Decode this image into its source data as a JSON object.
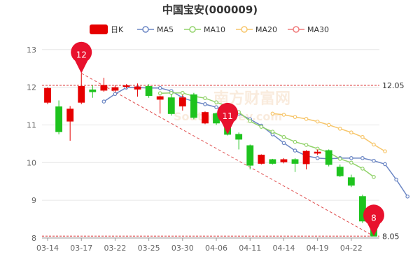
{
  "chart_data": {
    "type": "candlestick",
    "title": "中国宝安(000009)",
    "legend": [
      {
        "name": "日K",
        "color": "#e60000",
        "kind": "candle"
      },
      {
        "name": "MA5",
        "color": "#6b86c4",
        "kind": "line"
      },
      {
        "name": "MA10",
        "color": "#92d36b",
        "kind": "line"
      },
      {
        "name": "MA20",
        "color": "#f7c66b",
        "kind": "line"
      },
      {
        "name": "MA30",
        "color": "#f07b7b",
        "kind": "line"
      }
    ],
    "x_ticks": [
      "03-14",
      "03-17",
      "03-22",
      "03-25",
      "03-30",
      "04-06",
      "04-11",
      "04-14",
      "04-19",
      "04-22"
    ],
    "y_ticks": [
      8,
      9,
      10,
      11,
      12,
      13
    ],
    "ylim": [
      8,
      13.2
    ],
    "grid": true,
    "up_color": "#e60000",
    "down_color": "#1ec31e",
    "candles": [
      {
        "date": "03-14",
        "open": 11.6,
        "close": 11.97,
        "high": 12.0,
        "low": 11.55
      },
      {
        "date": "03-15",
        "open": 11.48,
        "close": 10.82,
        "high": 11.65,
        "low": 10.75
      },
      {
        "date": "03-16",
        "open": 11.1,
        "close": 11.42,
        "high": 11.5,
        "low": 10.58
      },
      {
        "date": "03-17",
        "open": 11.6,
        "close": 12.02,
        "high": 12.37,
        "low": 11.55
      },
      {
        "date": "03-18",
        "open": 11.93,
        "close": 11.88,
        "high": 12.05,
        "low": 11.72
      },
      {
        "date": "03-21",
        "open": 11.92,
        "close": 12.05,
        "high": 12.25,
        "low": 11.88
      },
      {
        "date": "03-22",
        "open": 11.92,
        "close": 11.99,
        "high": 12.05,
        "low": 11.87
      },
      {
        "date": "03-23",
        "open": 12.02,
        "close": 12.04,
        "high": 12.08,
        "low": 11.97
      },
      {
        "date": "03-24",
        "open": 11.95,
        "close": 12.01,
        "high": 12.1,
        "low": 11.75
      },
      {
        "date": "03-25",
        "open": 12.02,
        "close": 11.78,
        "high": 12.08,
        "low": 11.72
      },
      {
        "date": "03-28",
        "open": 11.68,
        "close": 11.75,
        "high": 11.78,
        "low": 11.3
      },
      {
        "date": "03-29",
        "open": 11.72,
        "close": 11.3,
        "high": 11.82,
        "low": 11.25
      },
      {
        "date": "03-30",
        "open": 11.5,
        "close": 11.72,
        "high": 11.8,
        "low": 11.38
      },
      {
        "date": "03-31",
        "open": 11.8,
        "close": 11.2,
        "high": 11.85,
        "low": 11.15
      },
      {
        "date": "04-01",
        "open": 11.05,
        "close": 11.33,
        "high": 11.36,
        "low": 11.02
      },
      {
        "date": "04-06",
        "open": 11.3,
        "close": 11.05,
        "high": 11.33,
        "low": 11.0
      },
      {
        "date": "04-07",
        "open": 11.05,
        "close": 10.75,
        "high": 11.1,
        "low": 10.72
      },
      {
        "date": "04-08",
        "open": 10.75,
        "close": 10.62,
        "high": 10.8,
        "low": 10.35
      },
      {
        "date": "04-11",
        "open": 10.45,
        "close": 9.93,
        "high": 10.48,
        "low": 9.82
      },
      {
        "date": "04-12",
        "open": 9.98,
        "close": 10.2,
        "high": 10.22,
        "low": 9.95
      },
      {
        "date": "04-13",
        "open": 10.08,
        "close": 9.98,
        "high": 10.1,
        "low": 9.95
      },
      {
        "date": "04-14",
        "open": 10.02,
        "close": 10.08,
        "high": 10.12,
        "low": 9.98
      },
      {
        "date": "04-15",
        "open": 10.08,
        "close": 9.98,
        "high": 10.12,
        "low": 9.75
      },
      {
        "date": "04-18",
        "open": 9.97,
        "close": 10.3,
        "high": 10.33,
        "low": 9.82
      },
      {
        "date": "04-19",
        "open": 10.25,
        "close": 10.28,
        "high": 10.35,
        "low": 10.2
      },
      {
        "date": "04-20",
        "open": 10.32,
        "close": 9.95,
        "high": 10.35,
        "low": 9.9
      },
      {
        "date": "04-21",
        "open": 9.88,
        "close": 9.65,
        "high": 9.95,
        "low": 9.62
      },
      {
        "date": "04-22",
        "open": 9.6,
        "close": 9.4,
        "high": 9.68,
        "low": 9.35
      },
      {
        "date": "04-25",
        "open": 9.1,
        "close": 8.45,
        "high": 9.15,
        "low": 8.4
      },
      {
        "date": "04-26",
        "open": 8.32,
        "close": 8.05,
        "high": 8.35,
        "low": 8.05
      }
    ],
    "series": [
      {
        "name": "MA5",
        "start_index": 5,
        "values": [
          11.62,
          11.82,
          11.99,
          11.99,
          11.98,
          11.98,
          11.9,
          11.72,
          11.62,
          11.55,
          11.47,
          11.38,
          11.3,
          11.15,
          10.98,
          10.75,
          10.52,
          10.32,
          10.18,
          10.12,
          10.1,
          10.12,
          10.12,
          10.12,
          10.05,
          9.96,
          9.55,
          9.1
        ]
      },
      {
        "name": "MA10",
        "start_index": 10,
        "values": [
          11.84,
          11.85,
          11.85,
          11.76,
          11.71,
          11.6,
          11.5,
          11.34,
          11.1,
          10.95,
          10.82,
          10.68,
          10.55,
          10.47,
          10.37,
          10.27,
          10.1,
          10.0,
          9.84,
          9.62
        ]
      },
      {
        "name": "MA20",
        "start_index": 20,
        "values": [
          11.3,
          11.27,
          11.21,
          11.16,
          11.09,
          11.0,
          10.9,
          10.8,
          10.68,
          10.48,
          10.3
        ]
      },
      {
        "name": "MA30",
        "start_index": 30,
        "values": []
      }
    ],
    "ref_lines": [
      {
        "value": 12.05,
        "label": "12.05",
        "color": "#d62728"
      },
      {
        "value": 8.05,
        "label": "8.05",
        "color": "#d62728"
      }
    ],
    "trend_line": {
      "from_index": 3,
      "from_value": 12.37,
      "to_index": 29,
      "to_value": 8.05,
      "color": "#e05050"
    },
    "markers": [
      {
        "label": "12",
        "index": 3,
        "value": 12.37
      },
      {
        "label": "11",
        "index": 16,
        "value": 10.75
      },
      {
        "label": "8",
        "index": 29,
        "value": 8.05
      }
    ],
    "watermark": "南方财富网",
    "watermark_sub": "Southmoney.com"
  }
}
